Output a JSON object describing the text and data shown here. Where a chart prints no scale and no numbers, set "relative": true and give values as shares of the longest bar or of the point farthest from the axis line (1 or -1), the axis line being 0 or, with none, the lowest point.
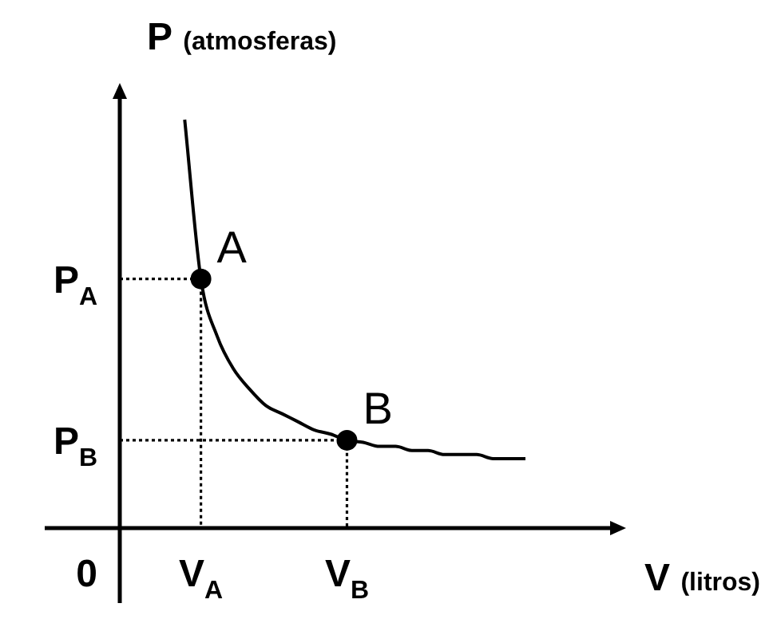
{
  "chart_data": {
    "type": "line",
    "relative": true,
    "xlabel": "V (litros)",
    "ylabel": "P (atmosferas)",
    "categories": [
      null,
      null,
      null,
      null,
      null,
      "V$_{A}$",
      null,
      null,
      null,
      null,
      null,
      null,
      null,
      null,
      "V$_{B}$",
      null,
      null,
      null,
      null,
      null,
      null,
      null,
      null,
      null,
      null,
      null
    ],
    "marker": "none",
    "line_style": "solid",
    "annotations": [
      "0",
      "P$_{A}$",
      "P$_{B}$",
      {
        "text": "A",
        "x": "V$_{A}$",
        "y": 0.61
      },
      {
        "text": "B",
        "x": "V$_{B}$",
        "y": 0.215
      }
    ],
    "series": [
      {
        "color": "#000000",
        "values": [
          null,
          null,
          null,
          null,
          1,
          0.61,
          0.47,
          0.39,
          0.34,
          0.3,
          0.28,
          0.26,
          0.24,
          0.23,
          0.215,
          0.21,
          0.2,
          0.2,
          0.19,
          0.19,
          0.18,
          0.18,
          0.18,
          0.17,
          0.17,
          0.17
        ]
      },
      {
        "type": "scatter",
        "marker": "circle",
        "color": "#000000",
        "x": [
          "V$_{A}$",
          "V$_{B}$"
        ],
        "values": [
          0.61,
          0.215
        ]
      },
      {
        "line_style": "dotted",
        "color": "#000000",
        "values": [
          0.61,
          0.61,
          0.61,
          0.61,
          0.61,
          0.61,
          null,
          null,
          null,
          null,
          null,
          null,
          null,
          null,
          null,
          null,
          null,
          null,
          null,
          null,
          null,
          null,
          null,
          null,
          null,
          null
        ]
      },
      {
        "line_style": "dotted",
        "color": "#000000",
        "x": [
          "V$_{A}$",
          "V$_{A}$"
        ],
        "values": [
          0.61,
          0
        ]
      },
      {
        "line_style": "dotted",
        "color": "#000000",
        "values": [
          0.215,
          0.215,
          0.215,
          0.215,
          0.215,
          0.215,
          0.215,
          0.215,
          0.215,
          0.215,
          0.215,
          0.215,
          0.215,
          0.215,
          0.215,
          null,
          null,
          null,
          null,
          null,
          null,
          null,
          null,
          null,
          null,
          null
        ]
      },
      {
        "line_style": "dotted",
        "color": "#000000",
        "x": [
          "V$_{B}$",
          "V$_{B}$"
        ],
        "values": [
          0.215,
          0
        ]
      }
    ]
  }
}
